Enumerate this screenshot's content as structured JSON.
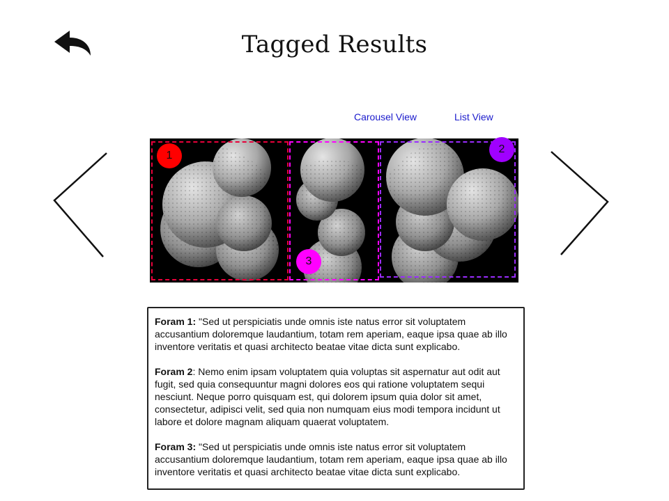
{
  "header": {
    "title": "Tagged Results",
    "back_icon": "reply-arrow-icon"
  },
  "view_toggle": {
    "carousel_label": "Carousel View",
    "list_label": "List View",
    "link_color": "#1a1acc"
  },
  "carousel": {
    "prev_icon": "chevron-left-icon",
    "next_icon": "chevron-right-icon",
    "tags": [
      {
        "number": "1",
        "color": "#ff0000",
        "box_color": "#e8003a"
      },
      {
        "number": "2",
        "color": "#a000ff",
        "box_color": "#9a2cff"
      },
      {
        "number": "3",
        "color": "#ff00ff",
        "box_color": "#ff00ff"
      }
    ]
  },
  "descriptions": [
    {
      "label": "Foram 1:",
      "text": " \"Sed ut perspiciatis unde omnis iste natus error sit voluptatem accusantium doloremque laudantium, totam rem aperiam, eaque ipsa quae ab illo inventore veritatis et quasi architecto beatae vitae dicta sunt explicabo."
    },
    {
      "label": "Foram 2",
      "text": ": Nemo enim ipsam voluptatem quia voluptas sit aspernatur aut odit aut fugit, sed quia consequuntur magni dolores eos qui ratione voluptatem sequi nesciunt. Neque porro quisquam est, qui dolorem ipsum quia dolor sit amet, consectetur, adipisci velit, sed quia non numquam eius modi tempora incidunt ut labore et dolore magnam aliquam quaerat voluptatem."
    },
    {
      "label": "Foram 3:",
      "text": " \"Sed ut perspiciatis unde omnis iste natus error sit voluptatem accusantium doloremque laudantium, totam rem aperiam, eaque ipsa quae ab illo inventore veritatis et quasi architecto beatae vitae dicta sunt explicabo."
    }
  ]
}
